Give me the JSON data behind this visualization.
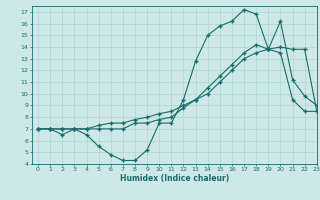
{
  "xlabel": "Humidex (Indice chaleur)",
  "bg_color": "#cde8e8",
  "line_color": "#1a6b6b",
  "grid_color": "#aacfcf",
  "xlim": [
    -0.5,
    23
  ],
  "ylim": [
    4,
    17.5
  ],
  "xticks": [
    0,
    1,
    2,
    3,
    4,
    5,
    6,
    7,
    8,
    9,
    10,
    11,
    12,
    13,
    14,
    15,
    16,
    17,
    18,
    19,
    20,
    21,
    22,
    23
  ],
  "yticks": [
    4,
    5,
    6,
    7,
    8,
    9,
    10,
    11,
    12,
    13,
    14,
    15,
    16,
    17
  ],
  "curve1_x": [
    0,
    1,
    2,
    3,
    4,
    5,
    6,
    7,
    8,
    9,
    10,
    11,
    12,
    13,
    14,
    15,
    16,
    17,
    18,
    19,
    20,
    21,
    22,
    23
  ],
  "curve1_y": [
    7,
    7,
    7,
    7,
    7,
    7.3,
    7.5,
    7.5,
    7.8,
    8,
    8.3,
    8.5,
    9,
    9.5,
    10,
    11,
    12,
    13,
    13.5,
    13.8,
    14.0,
    13.8,
    13.8,
    8.5
  ],
  "curve2_x": [
    0,
    1,
    2,
    3,
    4,
    5,
    6,
    7,
    8,
    9,
    10,
    11,
    12,
    13,
    14,
    15,
    16,
    17,
    18,
    19,
    20,
    21,
    22,
    23
  ],
  "curve2_y": [
    7,
    7,
    6.5,
    7,
    6.5,
    5.5,
    4.8,
    4.3,
    4.3,
    5.2,
    7.5,
    7.5,
    9.5,
    12.8,
    15,
    15.8,
    16.2,
    17.2,
    16.8,
    13.8,
    16.2,
    11.2,
    9.8,
    9.0
  ],
  "curve3_x": [
    0,
    1,
    2,
    3,
    4,
    5,
    6,
    7,
    8,
    9,
    10,
    11,
    12,
    13,
    14,
    15,
    16,
    17,
    18,
    19,
    20,
    21,
    22,
    23
  ],
  "curve3_y": [
    7,
    7,
    7,
    7,
    7,
    7,
    7,
    7,
    7.5,
    7.5,
    7.8,
    8.0,
    8.8,
    9.5,
    10.5,
    11.5,
    12.5,
    13.5,
    14.2,
    13.8,
    13.5,
    9.5,
    8.5,
    8.5
  ]
}
